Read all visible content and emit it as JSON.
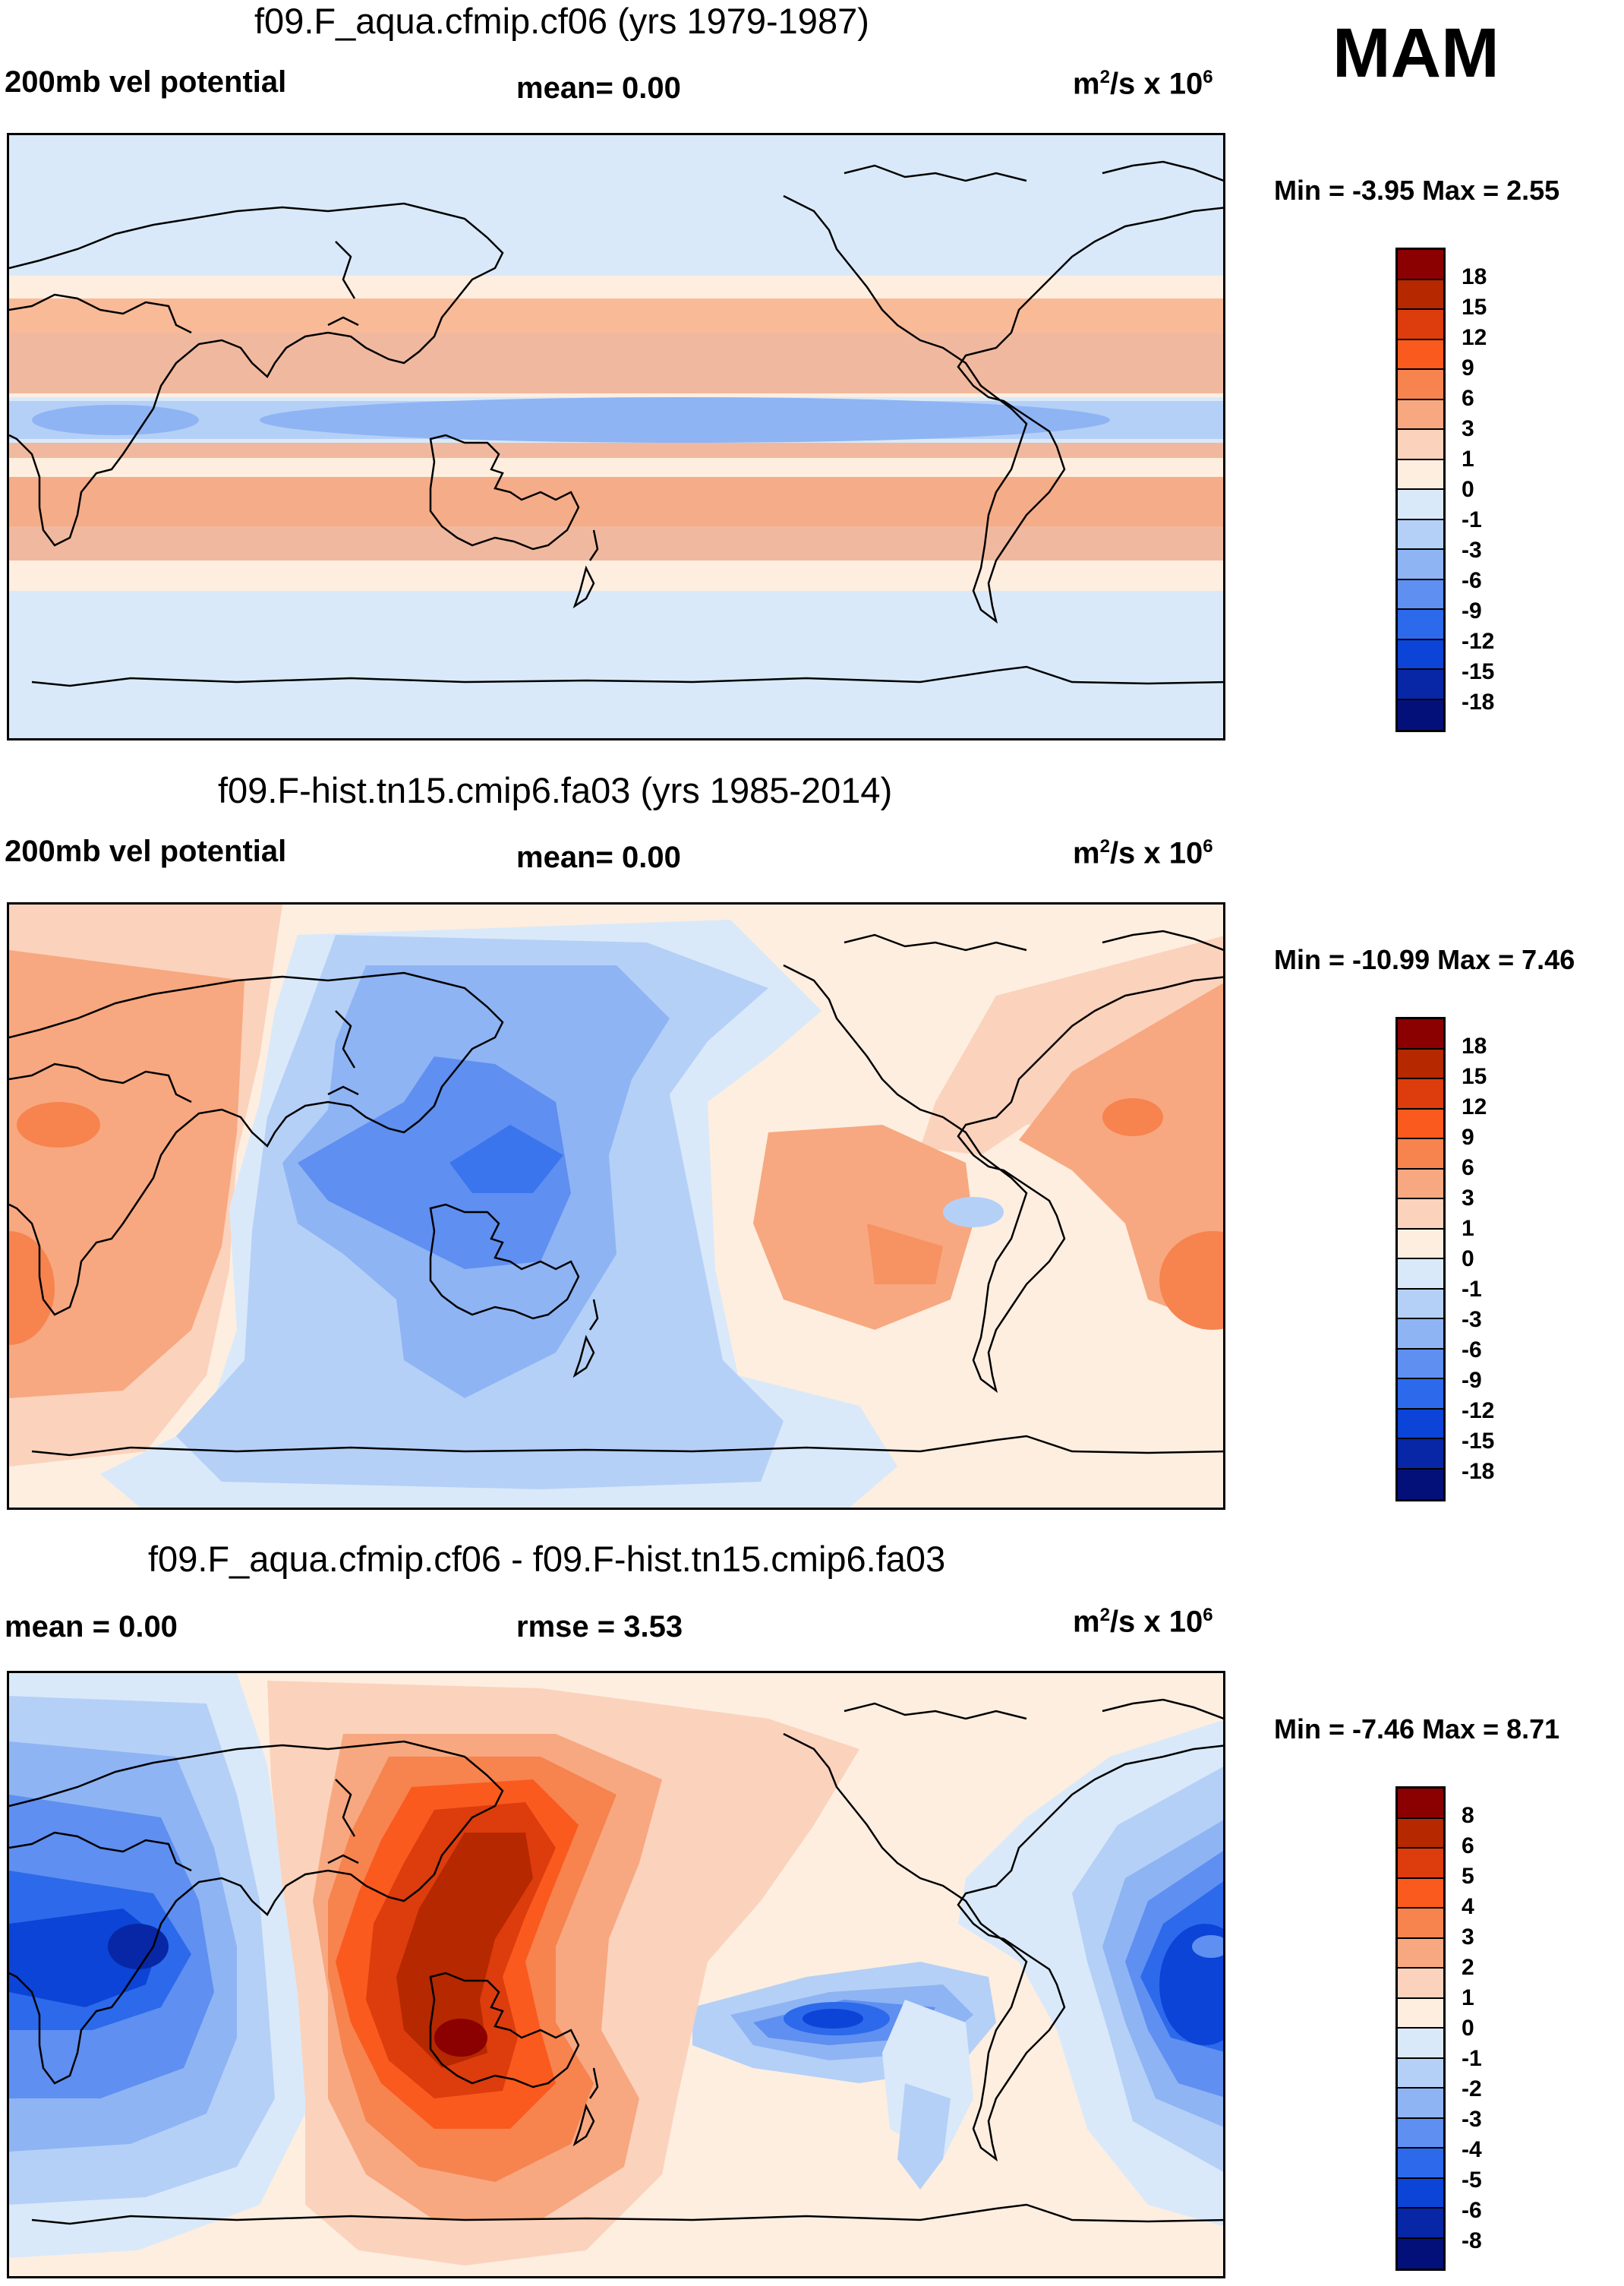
{
  "season": "MAM",
  "panels": [
    {
      "title": "f09.F_aqua.cfmip.cf06 (yrs 1979-1987)",
      "left_label": "200mb vel potential",
      "center_label": "mean=   0.00",
      "units_base": "m",
      "units_mid": "/s x 10",
      "units_sup1": "2",
      "units_sup2": "6",
      "minmax": "Min =  -3.95 Max =   2.55",
      "levels": [
        "18",
        "15",
        "12",
        "9",
        "6",
        "3",
        "1",
        "0",
        "-1",
        "-3",
        "-6",
        "-9",
        "-12",
        "-15",
        "-18"
      ]
    },
    {
      "title": "f09.F-hist.tn15.cmip6.fa03 (yrs 1985-2014)",
      "left_label": "200mb vel potential",
      "center_label": "mean=   0.00",
      "units_base": "m",
      "units_mid": "/s x 10",
      "units_sup1": "2",
      "units_sup2": "6",
      "minmax": "Min = -10.99 Max =   7.46",
      "levels": [
        "18",
        "15",
        "12",
        "9",
        "6",
        "3",
        "1",
        "0",
        "-1",
        "-3",
        "-6",
        "-9",
        "-12",
        "-15",
        "-18"
      ]
    },
    {
      "title": "f09.F_aqua.cfmip.cf06 - f09.F-hist.tn15.cmip6.fa03",
      "left_label": "mean =   0.00",
      "center_label": "rmse =   3.53",
      "units_base": "m",
      "units_mid": "/s x 10",
      "units_sup1": "2",
      "units_sup2": "6",
      "minmax": "Min =  -7.46 Max =   8.71",
      "levels": [
        "8",
        "6",
        "5",
        "4",
        "3",
        "2",
        "1",
        "0",
        "-1",
        "-2",
        "-3",
        "-4",
        "-5",
        "-6",
        "-8"
      ]
    }
  ],
  "colors": [
    "#8b0000",
    "#b52800",
    "#dd3c0d",
    "#fa5a1e",
    "#f7834f",
    "#f7a880",
    "#fbd2bc",
    "#fdeee0",
    "#d9e9f9",
    "#b5d0f7",
    "#8eb4f4",
    "#5f8ff0",
    "#2c6aeb",
    "#0b44d6",
    "#0727a6",
    "#04107a"
  ]
}
